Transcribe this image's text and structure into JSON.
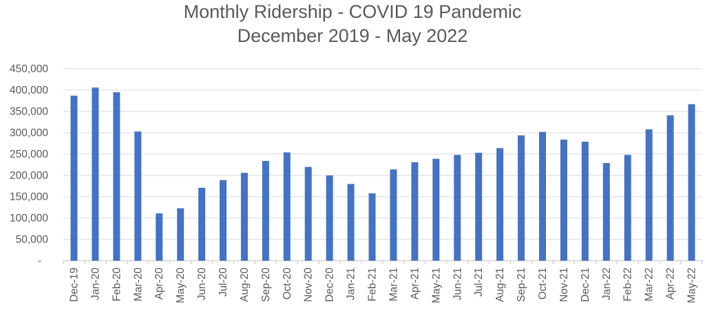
{
  "chart_data": {
    "type": "bar",
    "title": "Monthly Ridership - COVID 19 Pandemic",
    "subtitle": "December 2019 - May 2022",
    "xlabel": "",
    "ylabel": "",
    "ylim": [
      0,
      450000
    ],
    "yticks": [
      0,
      50000,
      100000,
      150000,
      200000,
      250000,
      300000,
      350000,
      400000,
      450000
    ],
    "ytick_labels": [
      "-",
      "50,000",
      "100,000",
      "150,000",
      "200,000",
      "250,000",
      "300,000",
      "350,000",
      "400,000",
      "450,000"
    ],
    "grid": true,
    "legend": "none",
    "bar_color": "#4472C4",
    "categories": [
      "Dec-19",
      "Jan-20",
      "Feb-20",
      "Mar-20",
      "Apr-20",
      "May-20",
      "Jun-20",
      "Jul-20",
      "Aug-20",
      "Sep-20",
      "Oct-20",
      "Nov-20",
      "Dec-20",
      "Jan-21",
      "Feb-21",
      "Mar-21",
      "Apr-21",
      "May-21",
      "Jun-21",
      "Jul-21",
      "Aug-21",
      "Sep-21",
      "Oct-21",
      "Nov-21",
      "Dec-21",
      "Jan-22",
      "Feb-22",
      "Mar-22",
      "Apr-22",
      "May-22"
    ],
    "values": [
      387000,
      406000,
      395000,
      303000,
      111000,
      123000,
      171000,
      189000,
      206000,
      234000,
      254000,
      220000,
      200000,
      180000,
      158000,
      214000,
      231000,
      239000,
      248000,
      253000,
      264000,
      294000,
      302000,
      284000,
      279000,
      229000,
      248000,
      308000,
      341000,
      367000
    ]
  }
}
